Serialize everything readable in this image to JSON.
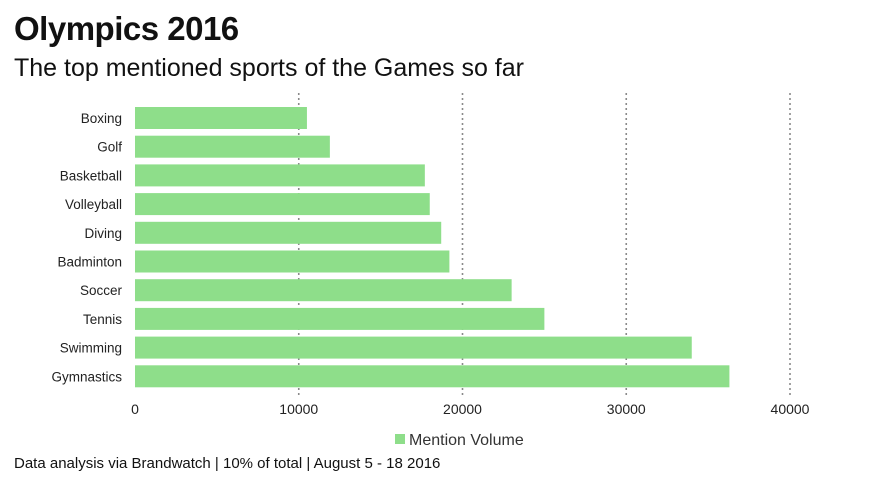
{
  "title": "Olympics 2016",
  "subtitle": "The top mentioned sports of the Games so far",
  "footer": "Data analysis via Brandwatch | 10% of total | August 5 - 18 2016",
  "chart_data": {
    "type": "bar",
    "orientation": "horizontal",
    "categories": [
      "Boxing",
      "Golf",
      "Basketball",
      "Volleyball",
      "Diving",
      "Badminton",
      "Soccer",
      "Tennis",
      "Swimming",
      "Gymnastics"
    ],
    "series": [
      {
        "name": "Mention Volume",
        "values": [
          10500,
          11900,
          17700,
          18000,
          18700,
          19200,
          23000,
          25000,
          34000,
          36300
        ],
        "color": "#8ede8a"
      }
    ],
    "xlim": [
      0,
      40000
    ],
    "xticks": [
      0,
      10000,
      20000,
      30000,
      40000
    ],
    "xtick_labels": [
      "0",
      "10000",
      "20000",
      "30000",
      "40000"
    ],
    "grid": "vertical dotted",
    "gridline_color": "#8a8a8a",
    "legend": "bottom-center"
  }
}
